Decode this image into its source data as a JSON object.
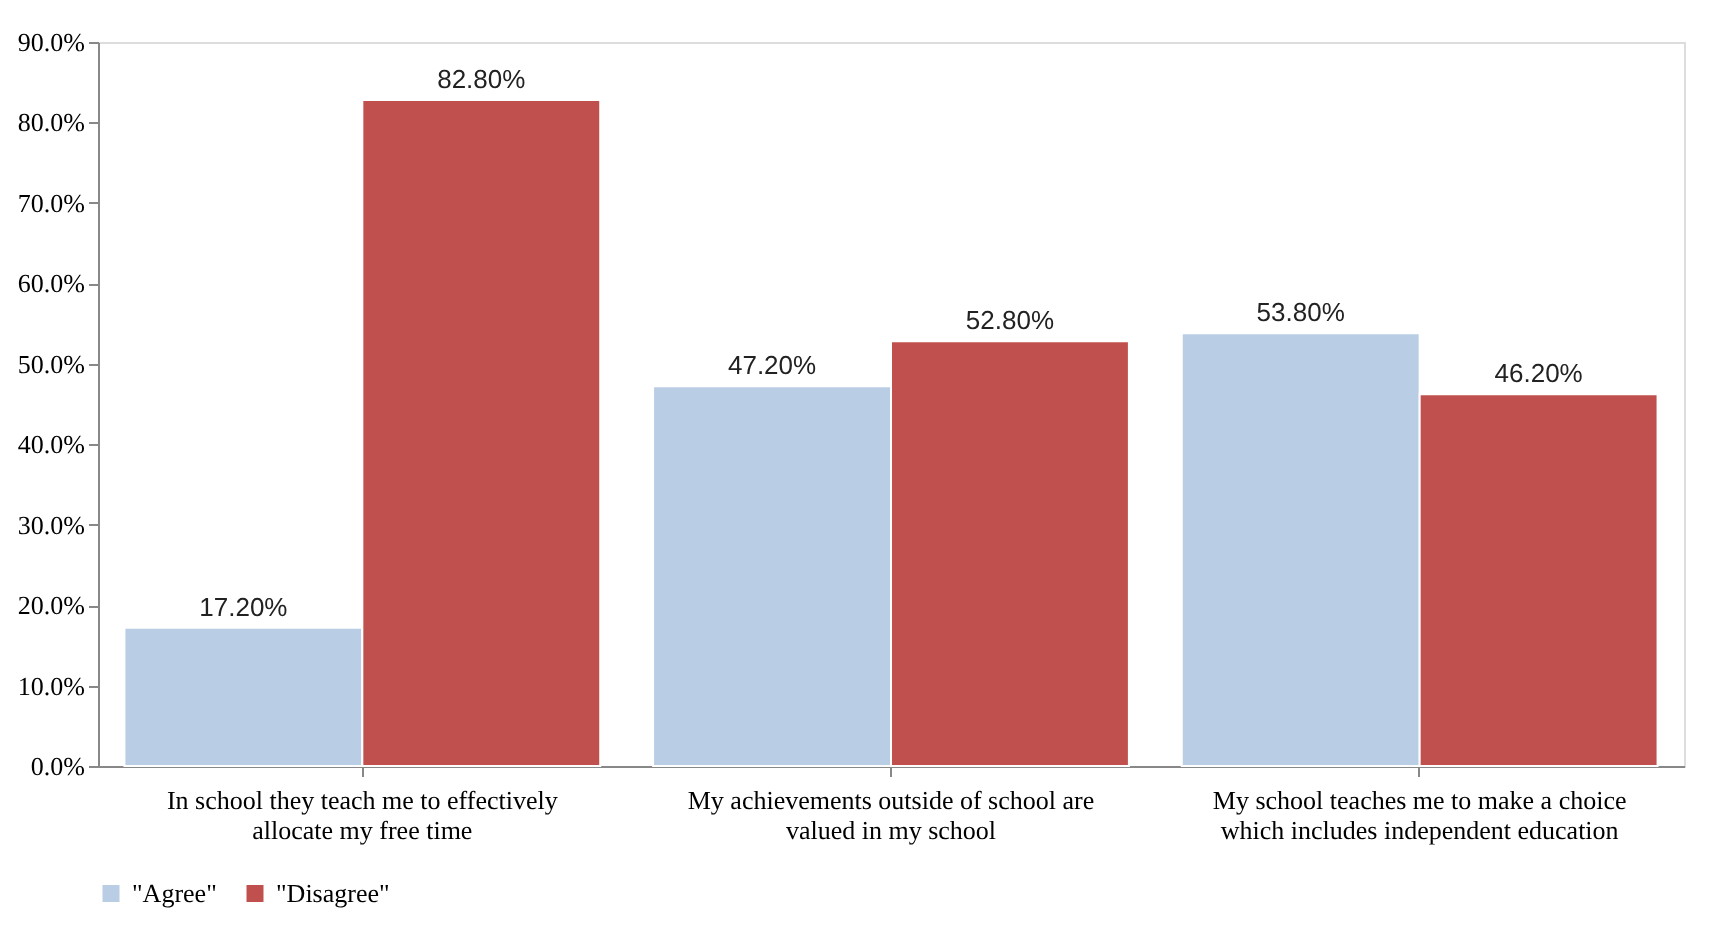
{
  "chart_data": {
    "type": "bar",
    "categories": [
      "In school they teach me to effectively allocate my free time",
      "My achievements outside of school are valued in my school",
      "My school teaches me to make a choice which includes independent education"
    ],
    "series": [
      {
        "name": "\"Agree\"",
        "color": "#b9cde5",
        "values": [
          17.2,
          47.2,
          53.8
        ],
        "value_labels": [
          "17.20%",
          "47.20%",
          "53.80%"
        ]
      },
      {
        "name": "\"Disagree\"",
        "color": "#c0504d",
        "values": [
          82.8,
          52.8,
          46.2
        ],
        "value_labels": [
          "82.80%",
          "52.80%",
          "46.20%"
        ]
      }
    ],
    "ylim": [
      0,
      90
    ],
    "yticks": [
      {
        "value": 0,
        "label": "0.0%"
      },
      {
        "value": 10,
        "label": "10.0%"
      },
      {
        "value": 20,
        "label": "20.0%"
      },
      {
        "value": 30,
        "label": "30.0%"
      },
      {
        "value": 40,
        "label": "40.0%"
      },
      {
        "value": 50,
        "label": "50.0%"
      },
      {
        "value": 60,
        "label": "60.0%"
      },
      {
        "value": 70,
        "label": "70.0%"
      },
      {
        "value": 80,
        "label": "80.0%"
      },
      {
        "value": 90,
        "label": "90.0%"
      }
    ],
    "grid": false,
    "legend": "bottom"
  }
}
